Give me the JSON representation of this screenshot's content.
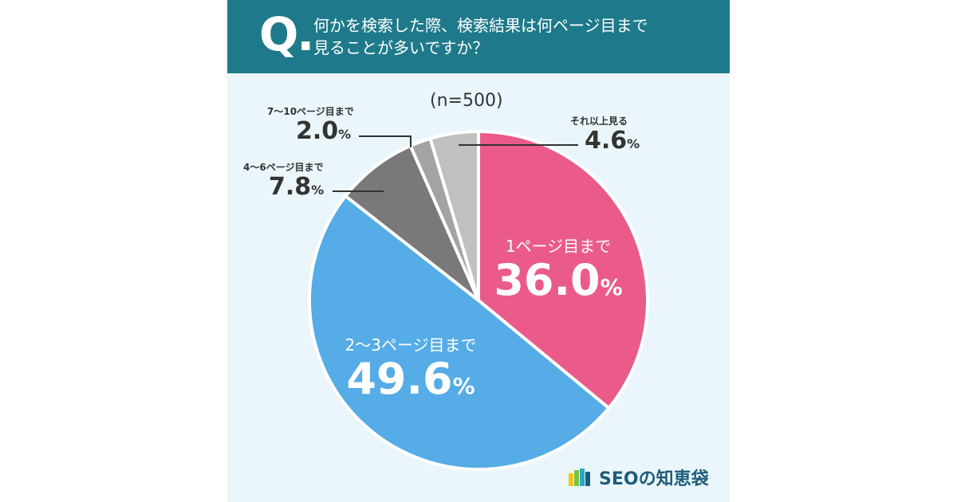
{
  "header": {
    "q_mark": "Q.",
    "question_line1": "何かを検索した際、検索結果は何ページ目まで",
    "question_line2": "見ることが多いですか？"
  },
  "sample_size": "(n=500)",
  "colors": {
    "header_bg": "#1e7a8a",
    "card_bg": "#eaf6fb",
    "page1": "#ea5b8a",
    "page2_3": "#55ace6",
    "page4_6": "#7b7879",
    "page7_10": "#a3a3a3",
    "more": "#c0c0c0"
  },
  "chart_data": {
    "type": "pie",
    "start_angle_deg": 0,
    "direction": "clockwise",
    "slices": [
      {
        "label": "1ページ目まで",
        "value": 36.0,
        "display": "36.0",
        "color": "#ea5b8a"
      },
      {
        "label": "2〜3ページ目まで",
        "value": 49.6,
        "display": "49.6",
        "color": "#55ace6"
      },
      {
        "label": "4〜6ページ目まで",
        "value": 7.8,
        "display": "7.8",
        "color": "#7b7879"
      },
      {
        "label": "7〜10ページ目まで",
        "value": 2.0,
        "display": "2.0",
        "color": "#a3a3a3"
      },
      {
        "label": "それ以上見る",
        "value": 4.6,
        "display": "4.6",
        "color": "#c0c0c0"
      }
    ],
    "unit": "%"
  },
  "brand": {
    "name": "SEOの知恵袋",
    "logo_colors": [
      "#f5c518",
      "#7cc242",
      "#2aa7c9",
      "#1e5d7a"
    ]
  }
}
